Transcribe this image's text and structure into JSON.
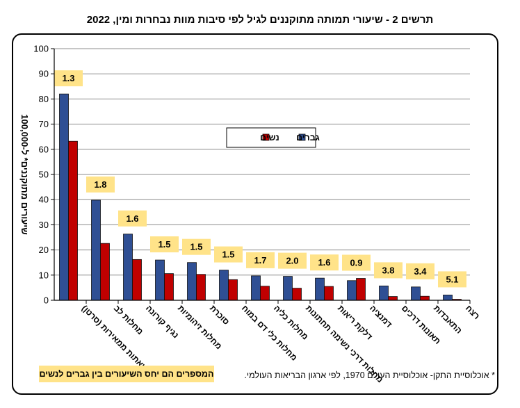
{
  "title": "תרשים 2 - שיעורי תמותה מתוקננים לגיל לפי סיבות מוות נבחרות ומין, 2022",
  "footnote": "* אוכלוסיית התקן- אוכלוסיית העולם 1970, לפי ארגון הבריאות העולמי.",
  "ratio_note": "המספרים הם יחס השיעורים בין גברים לנשים",
  "colors": {
    "men": "#2f4f94",
    "women": "#c00000",
    "ratio_box": "#ffe389"
  },
  "chart_data": {
    "type": "bar",
    "title": "תרשים 2 - שיעורי תמותה מתוקננים לגיל לפי סיבות מוות נבחרות ומין, 2022",
    "ylabel": "שיעורים מתוקננים* ל-100,000",
    "ylim": [
      0,
      100
    ],
    "yticks": [
      0,
      10,
      20,
      30,
      40,
      50,
      60,
      70,
      80,
      90,
      100
    ],
    "grid": true,
    "legend": "center",
    "categories": [
      "שאתות ממאירות (סרטן)",
      "מחלות לב",
      "נגיף קורונה",
      "מחלות זיהומיות",
      "סוכרת",
      "מחלות כלי דם במוח",
      "מחלות כליה",
      "מחלות דרכי נשימה תחתונות",
      "דלקת ריאות",
      "דמנציה",
      "תאונות דרכים",
      "התאבדות",
      "רצח"
    ],
    "series": [
      {
        "name": "גברים",
        "values": [
          82,
          39.8,
          26.3,
          16,
          15,
          12,
          9.7,
          9.5,
          8.8,
          7.8,
          5.7,
          5.3,
          2.1
        ]
      },
      {
        "name": "נשים",
        "values": [
          63.2,
          22.6,
          16.2,
          10.6,
          10.3,
          8.2,
          5.6,
          4.8,
          5.5,
          8.7,
          1.5,
          1.6,
          0.4
        ]
      }
    ],
    "ratios": [
      "1.3",
      "1.8",
      "1.6",
      "1.5",
      "1.5",
      "1.5",
      "1.7",
      "2.0",
      "1.6",
      "0.9",
      "3.8",
      "3.4",
      "5.1"
    ]
  }
}
